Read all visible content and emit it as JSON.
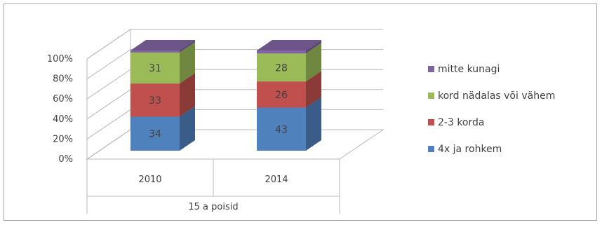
{
  "chart_data": {
    "type": "bar",
    "stacked": true,
    "percent": true,
    "three_d": true,
    "categories": [
      "2010",
      "2014"
    ],
    "group_label": "15 a poisid",
    "series": [
      {
        "name": "4x ja rohkem",
        "values": [
          34,
          43
        ],
        "color": "#4f81bd"
      },
      {
        "name": "2-3 korda",
        "values": [
          33,
          26
        ],
        "color": "#c0504d"
      },
      {
        "name": "kord nädalas või vähem",
        "values": [
          31,
          28
        ],
        "color": "#9bbb59"
      },
      {
        "name": "mitte kunagi",
        "values": [
          2,
          3
        ],
        "color": "#8064a2"
      }
    ],
    "segment_labels": [
      [
        "34",
        "43"
      ],
      [
        "33",
        "26"
      ],
      [
        "31",
        "28"
      ]
    ],
    "y_ticks": [
      "0%",
      "20%",
      "40%",
      "60%",
      "80%",
      "100%"
    ],
    "ylim": [
      0,
      100
    ],
    "legend_position": "right",
    "grid": true
  }
}
